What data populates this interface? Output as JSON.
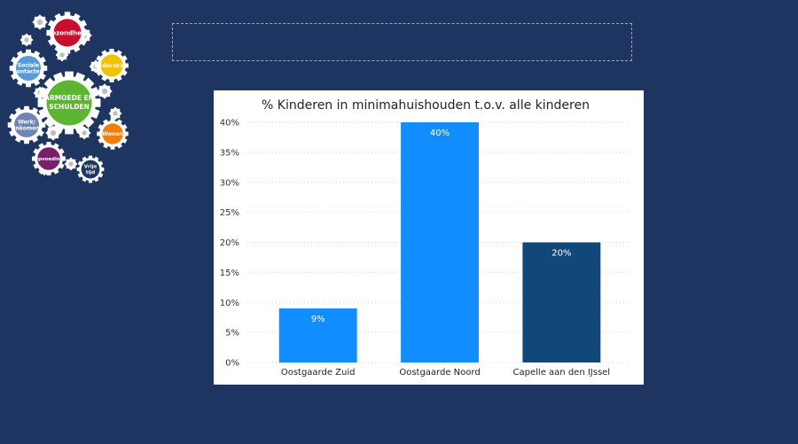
{
  "logo": {
    "center_label": [
      "ARMOEDE EN",
      "SCHULDEN"
    ],
    "gears": [
      {
        "id": "gezondheid",
        "label": [
          "Gezondheid"
        ],
        "color": "#c8102e"
      },
      {
        "id": "sociale-contacten",
        "label": [
          "Sociale",
          "contacten"
        ],
        "color": "#5b9bd5"
      },
      {
        "id": "educatie",
        "label": [
          "Educatie"
        ],
        "color": "#f2c100"
      },
      {
        "id": "werk-inkomen",
        "label": [
          "Werk/",
          "inkomen"
        ],
        "color": "#6f86b5"
      },
      {
        "id": "wonen",
        "label": [
          "Wonen"
        ],
        "color": "#f07f09"
      },
      {
        "id": "opvoeding",
        "label": [
          "Opvoeding"
        ],
        "color": "#7a1f6e"
      },
      {
        "id": "vrije-tijd",
        "label": [
          "Vrije",
          "tijd"
        ],
        "color": "#1f3864"
      }
    ],
    "center_color": "#5cb531"
  },
  "colors": {
    "background": "#1e3461",
    "bar_light": "#118dff",
    "bar_dark": "#12477a"
  },
  "chart_data": {
    "type": "bar",
    "title": "% Kinderen in minimahuishouden t.o.v. alle kinderen",
    "categories": [
      "Oostgaarde Zuid",
      "Oostgaarde Noord",
      "Capelle aan den IJssel"
    ],
    "values": [
      9,
      40,
      20
    ],
    "data_labels": [
      "9%",
      "40%",
      "20%"
    ],
    "bar_colors": [
      "#118dff",
      "#118dff",
      "#12477a"
    ],
    "ylim": [
      0,
      40
    ],
    "yticks": [
      0,
      5,
      10,
      15,
      20,
      25,
      30,
      35,
      40
    ],
    "ytick_labels": [
      "0%",
      "5%",
      "10%",
      "15%",
      "20%",
      "25%",
      "30%",
      "35%",
      "40%"
    ],
    "grid": true,
    "xlabel": "",
    "ylabel": ""
  }
}
